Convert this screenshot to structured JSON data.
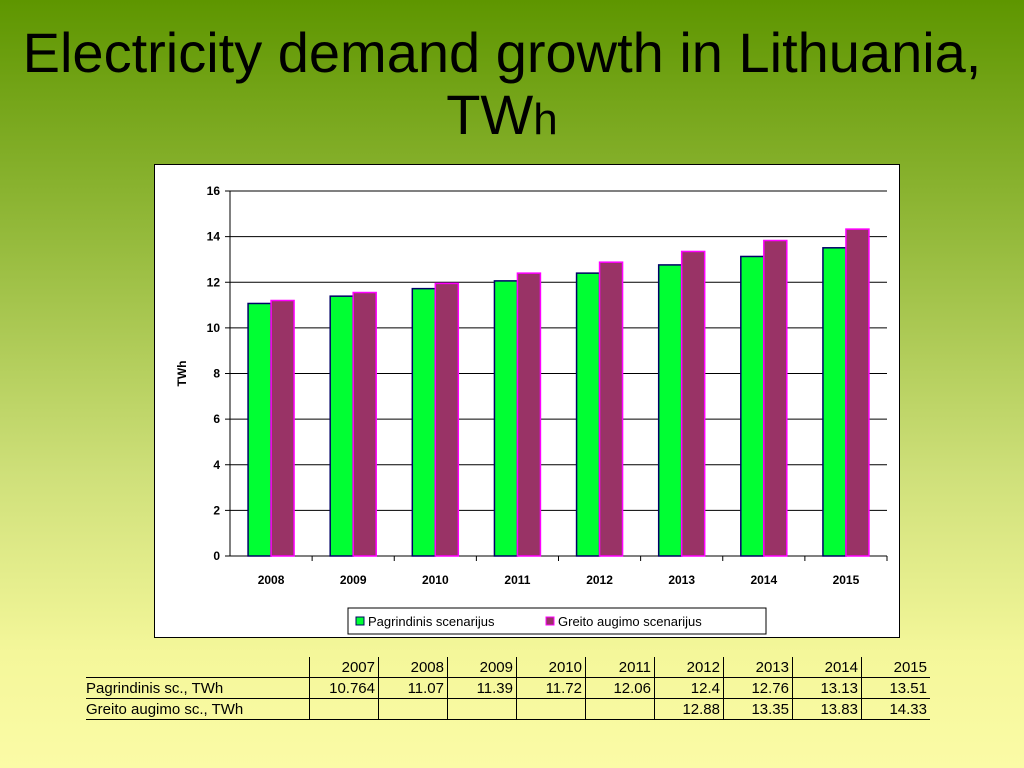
{
  "title": {
    "main": "Electricity demand growth in Lithuania, TW",
    "suffix": "h"
  },
  "chart_data": {
    "type": "bar",
    "categories": [
      "2008",
      "2009",
      "2010",
      "2011",
      "2012",
      "2013",
      "2014",
      "2015"
    ],
    "series": [
      {
        "name": "Pagrindinis scenarijus",
        "values": [
          11.07,
          11.39,
          11.72,
          12.06,
          12.4,
          12.76,
          13.13,
          13.51
        ],
        "color": "#00ff33"
      },
      {
        "name": "Greito augimo scenarijus",
        "values": [
          11.2,
          11.55,
          11.95,
          12.4,
          12.88,
          13.35,
          13.83,
          14.33
        ],
        "color": "#993366"
      }
    ],
    "ylabel": "TWh",
    "ylim": [
      0,
      16
    ],
    "yticks": [
      "0",
      "2",
      "4",
      "6",
      "8",
      "10",
      "12",
      "14",
      "16"
    ],
    "grid": true,
    "legend_position": "bottom"
  },
  "table": {
    "years": [
      "2007",
      "2008",
      "2009",
      "2010",
      "2011",
      "2012",
      "2013",
      "2014",
      "2015"
    ],
    "rows": [
      {
        "label": "Pagrindinis sc., TWh",
        "values": [
          "10.764",
          "11.07",
          "11.39",
          "11.72",
          "12.06",
          "12.4",
          "12.76",
          "13.13",
          "13.51"
        ]
      },
      {
        "label": "Greito augimo sc., TWh",
        "values": [
          "",
          "",
          "",
          "",
          "",
          "12.88",
          "13.35",
          "13.83",
          "14.33"
        ]
      }
    ]
  }
}
